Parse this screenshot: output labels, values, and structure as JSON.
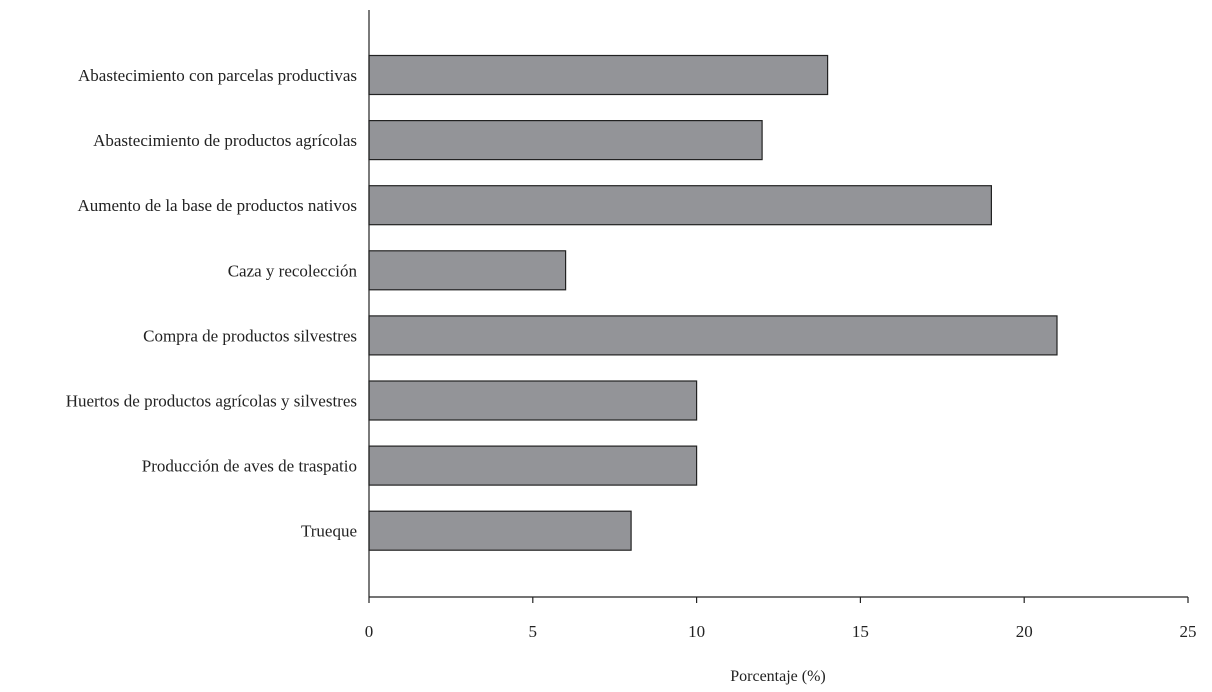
{
  "chart_data": {
    "type": "bar",
    "orientation": "horizontal",
    "categories": [
      "Abastecimiento con parcelas productivas",
      "Abastecimiento de productos agrícolas",
      "Aumento de la base de productos nativos",
      "Caza y recolección",
      "Compra de productos silvestres",
      "Huertos de productos agrícolas y silvestres",
      "Producción de aves de traspatio",
      "Trueque"
    ],
    "values": [
      14,
      12,
      19,
      6,
      21,
      10,
      10,
      8
    ],
    "title": "",
    "xlabel": "Porcentaje (%)",
    "ylabel": "",
    "xlim": [
      0,
      25
    ],
    "xticks": [
      0,
      5,
      10,
      15,
      20,
      25
    ],
    "xtick_labels": [
      "0",
      "5",
      "10",
      "15",
      "20",
      "25"
    ],
    "grid": false,
    "legend": "none",
    "colors": {
      "bar_fill": "#939498",
      "bar_stroke": "#222222",
      "axis": "#222222"
    }
  }
}
